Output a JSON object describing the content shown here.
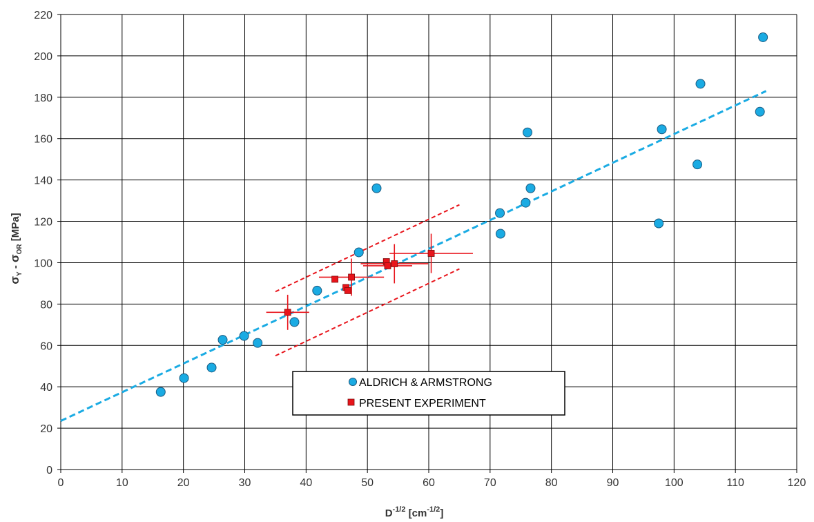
{
  "chart_data": {
    "type": "scatter",
    "title": "",
    "xlabel": {
      "base": "D",
      "sup": "-1/2",
      "unit_open": " [cm",
      "unit_sup": "-1/2",
      "unit_close": "]"
    },
    "ylabel": {
      "s1": "σ",
      "sub1": "Y",
      "dash": " - ",
      "s2": "σ",
      "sub2": "OR",
      "unit": " [MPa]"
    },
    "xlim": [
      0,
      120
    ],
    "ylim": [
      0,
      220
    ],
    "xticks": [
      0,
      10,
      20,
      30,
      40,
      50,
      60,
      70,
      80,
      90,
      100,
      110,
      120
    ],
    "yticks": [
      0,
      20,
      40,
      60,
      80,
      100,
      120,
      140,
      160,
      180,
      200,
      220
    ],
    "grid": true,
    "legend_position": "bottom-center",
    "colors": {
      "aldrich_fill": "#1AABE3",
      "aldrich_stroke": "#1a5a80",
      "present_fill": "#E8141B",
      "trend": "#1AABE3",
      "band": "#E8141B",
      "errorbar": "#E8141B",
      "grid": "#000000"
    },
    "series": [
      {
        "name": "ALDRICH & ARMSTRONG",
        "marker": "circle",
        "points": [
          [
            16.3,
            37.5
          ],
          [
            20.1,
            44.2
          ],
          [
            24.6,
            49.3
          ],
          [
            26.4,
            62.7
          ],
          [
            29.9,
            64.6
          ],
          [
            32.1,
            61.2
          ],
          [
            38.1,
            71.3
          ],
          [
            41.8,
            86.5
          ],
          [
            48.6,
            105.0
          ],
          [
            51.5,
            136.0
          ],
          [
            71.6,
            124.0
          ],
          [
            71.7,
            114.0
          ],
          [
            75.8,
            129.0
          ],
          [
            76.1,
            163.0
          ],
          [
            76.6,
            136.0
          ],
          [
            97.5,
            119.0
          ],
          [
            98.0,
            164.5
          ],
          [
            103.8,
            147.5
          ],
          [
            104.3,
            186.5
          ],
          [
            114.0,
            173.0
          ],
          [
            114.5,
            209.0
          ]
        ]
      },
      {
        "name": "PRESENT EXPERIMENT",
        "marker": "square",
        "points": [
          [
            37.0,
            76.0
          ],
          [
            44.7,
            92.0
          ],
          [
            46.5,
            88.0
          ],
          [
            46.8,
            86.5
          ],
          [
            47.4,
            93.0
          ],
          [
            53.1,
            100.5
          ],
          [
            53.3,
            98.5
          ],
          [
            54.4,
            99.5
          ],
          [
            60.4,
            104.5
          ]
        ],
        "error_bars": [
          {
            "x": 37.0,
            "y": 76.0,
            "xerr": 3.5,
            "yerr": 8.5
          },
          {
            "x": 44.7,
            "y": 92.0,
            "xerr": 0.3,
            "yerr": 0.0
          },
          {
            "x": 47.4,
            "y": 93.0,
            "xerr": 5.3,
            "yerr": 9.0
          },
          {
            "x": 53.3,
            "y": 98.5,
            "xerr": 4.0,
            "yerr": 0.0
          },
          {
            "x": 54.4,
            "y": 99.5,
            "xerr": 5.5,
            "yerr": 9.5
          },
          {
            "x": 60.4,
            "y": 104.5,
            "xerr": 6.8,
            "yerr": 9.5
          }
        ]
      }
    ],
    "trend_line": {
      "style": "dashed",
      "from": [
        0,
        23.5
      ],
      "to": [
        115,
        183
      ]
    },
    "confidence_band": {
      "style": "dashed",
      "upper": {
        "from": [
          35,
          86
        ],
        "to": [
          65,
          128
        ]
      },
      "lower": {
        "from": [
          35,
          55
        ],
        "to": [
          65,
          97
        ]
      }
    }
  }
}
